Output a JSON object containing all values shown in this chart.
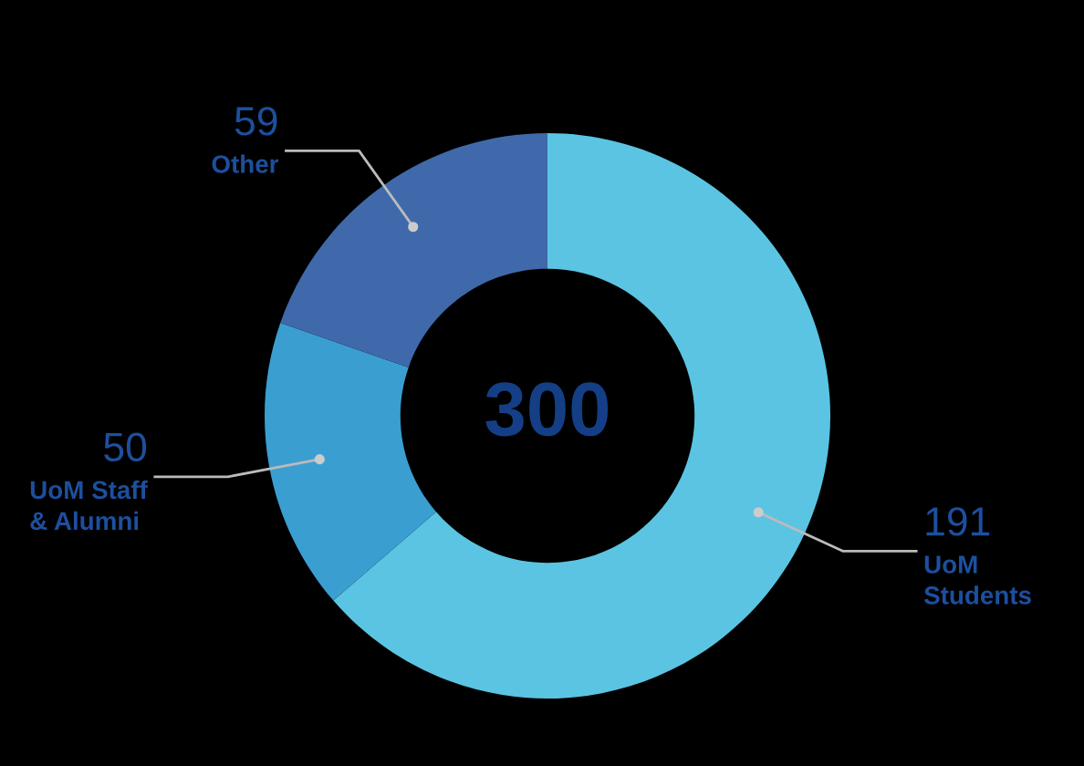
{
  "chart_data": {
    "type": "donut",
    "categories": [
      "UoM Students",
      "UoM Staff & Alumni",
      "Other"
    ],
    "values": [
      191,
      50,
      59
    ],
    "colors": [
      "#5bc4e2",
      "#3b9ed1",
      "#3f69aa"
    ],
    "data_labels": true,
    "annotations": [
      "300"
    ]
  }
}
